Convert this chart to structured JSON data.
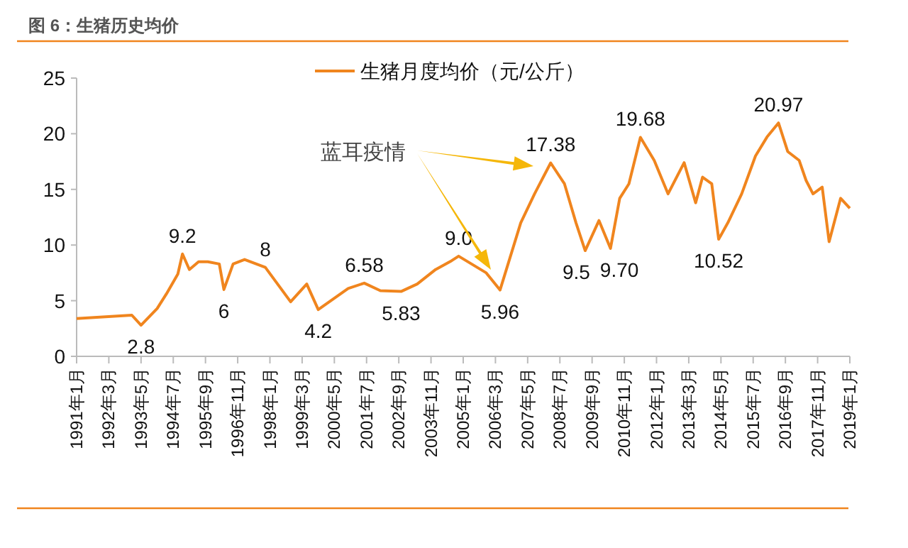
{
  "chart_data": {
    "type": "line",
    "title": "图 6：生猪历史均价",
    "legend": "top",
    "x": [
      "1991-01",
      "1993-01",
      "1993-05",
      "1993-12",
      "1994-04",
      "1994-09",
      "1994-11",
      "1995-02",
      "1995-06",
      "1995-10",
      "1996-03",
      "1996-05",
      "1996-09",
      "1997-02",
      "1997-11",
      "1998-10",
      "1999-05",
      "1999-10",
      "2000-11",
      "2001-06",
      "2002-01",
      "2002-10",
      "2003-05",
      "2004-01",
      "2004-08",
      "2004-11",
      "2005-11",
      "2006-05",
      "2007-02",
      "2007-08",
      "2008-03",
      "2008-09",
      "2009-02",
      "2009-06",
      "2009-12",
      "2010-05",
      "2010-09",
      "2011-01",
      "2011-06",
      "2011-12",
      "2012-06",
      "2013-01",
      "2013-06",
      "2013-09",
      "2014-01",
      "2014-04",
      "2014-08",
      "2015-02",
      "2015-08",
      "2016-01",
      "2016-06",
      "2016-10",
      "2017-03",
      "2017-06",
      "2017-09",
      "2018-01",
      "2018-04",
      "2018-09",
      "2019-01"
    ],
    "series": [
      {
        "name": "生猪月度均价（元/公斤）",
        "color": "#f0851e",
        "values": [
          3.4,
          3.7,
          2.8,
          4.3,
          5.6,
          7.4,
          9.2,
          7.8,
          8.5,
          8.5,
          8.3,
          6,
          8.3,
          8.7,
          8,
          4.9,
          6.5,
          4.2,
          6.1,
          6.58,
          5.9,
          5.83,
          6.5,
          7.8,
          8.6,
          9.0,
          7.5,
          5.96,
          12.0,
          14.6,
          17.38,
          15.5,
          12.0,
          9.5,
          12.2,
          9.7,
          14.2,
          15.5,
          19.68,
          17.6,
          14.6,
          17.4,
          13.8,
          16.1,
          15.5,
          10.52,
          12.0,
          14.6,
          18.0,
          19.7,
          20.97,
          18.4,
          17.6,
          15.8,
          14.6,
          15.2,
          10.3,
          14.2,
          13.3
        ]
      }
    ],
    "ylim": [
      0,
      25
    ],
    "yticks": [
      0,
      5,
      10,
      15,
      20,
      25
    ],
    "xlim": [
      "1991-01",
      "2019-01"
    ],
    "xticks": [
      {
        "value": "1991-01",
        "label": "1991年1月"
      },
      {
        "value": "1992-03",
        "label": "1992年3月"
      },
      {
        "value": "1993-05",
        "label": "1993年5月"
      },
      {
        "value": "1994-07",
        "label": "1994年7月"
      },
      {
        "value": "1995-09",
        "label": "1995年9月"
      },
      {
        "value": "1996-11",
        "label": "1996年11月"
      },
      {
        "value": "1998-01",
        "label": "1998年1月"
      },
      {
        "value": "1999-03",
        "label": "1999年3月"
      },
      {
        "value": "2000-05",
        "label": "2000年5月"
      },
      {
        "value": "2001-07",
        "label": "2001年7月"
      },
      {
        "value": "2002-09",
        "label": "2002年9月"
      },
      {
        "value": "2003-11",
        "label": "2003年11月"
      },
      {
        "value": "2005-01",
        "label": "2005年1月"
      },
      {
        "value": "2006-03",
        "label": "2006年3月"
      },
      {
        "value": "2007-05",
        "label": "2007年5月"
      },
      {
        "value": "2008-07",
        "label": "2008年7月"
      },
      {
        "value": "2009-09",
        "label": "2009年9月"
      },
      {
        "value": "2010-11",
        "label": "2010年11月"
      },
      {
        "value": "2012-01",
        "label": "2012年1月"
      },
      {
        "value": "2013-03",
        "label": "2013年3月"
      },
      {
        "value": "2014-05",
        "label": "2014年5月"
      },
      {
        "value": "2015-07",
        "label": "2015年7月"
      },
      {
        "value": "2016-09",
        "label": "2016年9月"
      },
      {
        "value": "2017-11",
        "label": "2017年11月"
      },
      {
        "value": "2019-01",
        "label": "2019年1月"
      }
    ],
    "grid": false,
    "marker": "none",
    "line_style": "solid",
    "annotations": [
      {
        "text": "2.8",
        "x": "1993-05",
        "y": 2.8
      },
      {
        "text": "9.2",
        "x": "1994-11",
        "y": 9.2
      },
      {
        "text": "6",
        "x": "1996-05",
        "y": 6
      },
      {
        "text": "8",
        "x": "1997-11",
        "y": 8
      },
      {
        "text": "4.2",
        "x": "1999-10",
        "y": 4.2
      },
      {
        "text": "6.58",
        "x": "2001-06",
        "y": 6.58
      },
      {
        "text": "5.83",
        "x": "2002-10",
        "y": 5.83
      },
      {
        "text": "9.0",
        "x": "2004-11",
        "y": 9.0
      },
      {
        "text": "5.96",
        "x": "2006-05",
        "y": 5.96
      },
      {
        "text": "17.38",
        "x": "2008-03",
        "y": 17.38
      },
      {
        "text": "9.5",
        "x": "2009-06",
        "y": 9.5
      },
      {
        "text": "9.70",
        "x": "2010-05",
        "y": 9.7
      },
      {
        "text": "19.68",
        "x": "2011-06",
        "y": 19.68
      },
      {
        "text": "10.52",
        "x": "2014-04",
        "y": 10.52
      },
      {
        "text": "20.97",
        "x": "2016-06",
        "y": 20.97
      },
      "蓝耳疫情"
    ]
  }
}
